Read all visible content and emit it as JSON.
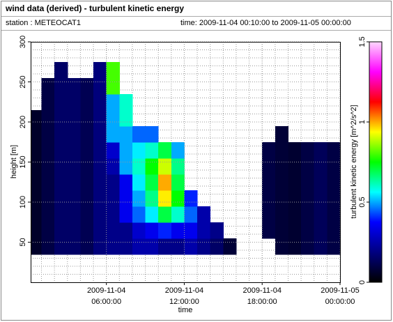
{
  "chart_data": {
    "type": "heatmap",
    "title": "wind data (derived) - turbulent kinetic energy",
    "subtitle": "station : METEOCAT1",
    "time_range": "time: 2009-11-04 00:10:00 to 2009-11-05 00:00:00",
    "x_label": "time",
    "y_label": "height [m]",
    "z_label": "turbulent kinetic energy [m^2/s^2]",
    "xlim": [
      10,
      1440
    ],
    "xticks": [
      {
        "value": 360,
        "label": [
          "2009-11-04",
          "06:00:00"
        ]
      },
      {
        "value": 720,
        "label": [
          "2009-11-04",
          "12:00:00"
        ]
      },
      {
        "value": 1080,
        "label": [
          "2009-11-04",
          "18:00:00"
        ]
      },
      {
        "value": 1440,
        "label": [
          "2009-11-05",
          "00:00:00"
        ]
      }
    ],
    "ylim": [
      0,
      300
    ],
    "yticks": [
      50,
      100,
      150,
      200,
      250,
      300
    ],
    "zlim": [
      0,
      1.5
    ],
    "zticks": [
      0,
      0.5,
      1,
      1.5
    ],
    "grid": true,
    "colormap": [
      "#000000",
      "#000080",
      "#0000ff",
      "#00ffff",
      "#00ff00",
      "#ffff00",
      "#ff0000",
      "#ff00ff",
      "#ffd8ff"
    ],
    "x_bins": [
      10,
      60,
      120,
      180,
      240,
      300,
      360,
      420,
      480,
      540,
      600,
      660,
      720,
      780,
      840,
      900,
      960,
      1020,
      1080,
      1140,
      1200,
      1260,
      1320,
      1380,
      1440
    ],
    "y_bins": [
      35,
      55,
      75,
      95,
      115,
      135,
      155,
      175,
      195,
      215,
      235,
      255,
      275
    ],
    "z": [
      [
        0.06,
        0.1,
        0.15,
        0.15,
        0.12,
        0.18,
        0.2,
        0.2,
        0.25,
        0.25,
        0.2,
        0.2,
        0.25,
        0.2,
        0.15,
        0.08,
        null,
        null,
        null,
        0.08,
        0.07,
        0.1,
        0.13,
        0.1
      ],
      [
        0.06,
        0.1,
        0.15,
        0.15,
        0.12,
        0.18,
        0.2,
        0.2,
        0.3,
        0.35,
        0.4,
        0.35,
        0.35,
        0.25,
        0.2,
        null,
        null,
        null,
        0.1,
        0.08,
        0.07,
        0.1,
        0.13,
        0.1
      ],
      [
        0.06,
        0.1,
        0.15,
        0.15,
        0.12,
        0.18,
        0.2,
        0.35,
        0.45,
        0.55,
        0.7,
        0.6,
        0.45,
        0.25,
        null,
        null,
        null,
        null,
        0.1,
        0.08,
        0.07,
        0.1,
        0.13,
        0.1
      ],
      [
        0.06,
        0.1,
        0.15,
        0.15,
        0.12,
        0.18,
        0.2,
        0.35,
        0.5,
        0.65,
        0.95,
        0.75,
        0.4,
        null,
        null,
        null,
        null,
        null,
        0.1,
        0.08,
        0.07,
        0.1,
        0.13,
        0.1
      ],
      [
        0.06,
        0.1,
        0.15,
        0.15,
        0.12,
        0.18,
        0.2,
        0.35,
        0.55,
        0.7,
        1.0,
        0.7,
        null,
        null,
        null,
        null,
        null,
        null,
        0.1,
        0.08,
        0.07,
        0.1,
        0.13,
        0.1
      ],
      [
        0.06,
        0.1,
        0.15,
        0.15,
        0.12,
        0.18,
        0.25,
        0.5,
        0.6,
        0.75,
        0.9,
        0.65,
        null,
        null,
        null,
        null,
        null,
        null,
        0.1,
        0.08,
        0.07,
        0.1,
        0.13,
        0.1
      ],
      [
        0.06,
        0.1,
        0.15,
        0.15,
        0.12,
        0.18,
        0.3,
        0.5,
        0.55,
        0.6,
        0.7,
        0.5,
        null,
        null,
        null,
        null,
        null,
        null,
        0.1,
        0.08,
        0.07,
        0.1,
        0.13,
        0.1
      ],
      [
        0.06,
        0.1,
        0.15,
        0.15,
        0.12,
        0.18,
        0.5,
        0.5,
        0.45,
        0.45,
        null,
        null,
        null,
        null,
        null,
        null,
        null,
        null,
        null,
        0.08,
        null,
        null,
        null,
        null
      ],
      [
        0.06,
        0.1,
        0.15,
        0.15,
        0.12,
        0.18,
        0.5,
        0.6,
        null,
        null,
        null,
        null,
        null,
        null,
        null,
        null,
        null,
        null,
        null,
        null,
        null,
        null,
        null,
        null
      ],
      [
        null,
        0.1,
        0.15,
        0.15,
        0.12,
        0.18,
        0.5,
        0.6,
        null,
        null,
        null,
        null,
        null,
        null,
        null,
        null,
        null,
        null,
        null,
        null,
        null,
        null,
        null,
        null
      ],
      [
        null,
        0.1,
        0.15,
        0.15,
        0.12,
        0.18,
        0.8,
        null,
        null,
        null,
        null,
        null,
        null,
        null,
        null,
        null,
        null,
        null,
        null,
        null,
        null,
        null,
        null,
        null
      ],
      [
        null,
        null,
        0.15,
        null,
        null,
        0.18,
        0.8,
        null,
        null,
        null,
        null,
        null,
        null,
        null,
        null,
        null,
        null,
        null,
        null,
        null,
        null,
        null,
        null,
        null
      ]
    ]
  }
}
